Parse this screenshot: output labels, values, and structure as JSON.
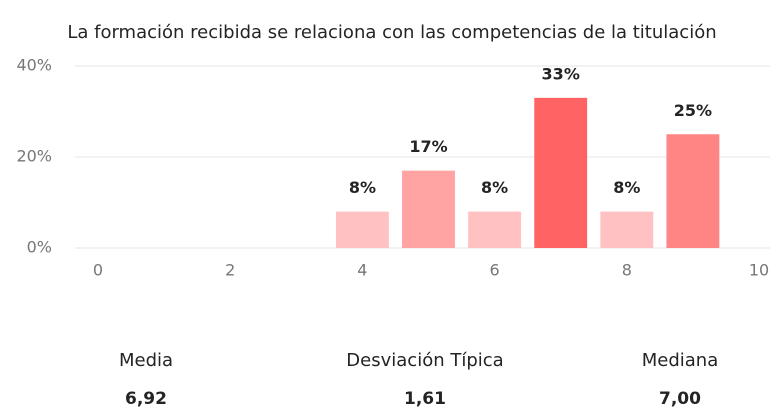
{
  "chart_data": {
    "type": "bar",
    "title": "La formación recibida se relaciona con las competencias de la titulación",
    "x": [
      4,
      5,
      6,
      7,
      8,
      9
    ],
    "values": [
      8,
      17,
      8,
      33,
      8,
      25
    ],
    "value_labels": [
      "8%",
      "17%",
      "8%",
      "33%",
      "8%",
      "25%"
    ],
    "colors": [
      "#ffc1c1",
      "#ffa3a3",
      "#ffc1c1",
      "#ff6363",
      "#ffc1c1",
      "#ff8585"
    ],
    "xlim": [
      0,
      10
    ],
    "xticks": [
      0,
      2,
      4,
      6,
      8,
      10
    ],
    "ylim": [
      0,
      40
    ],
    "yticks": [
      {
        "value": 0,
        "label": "0%"
      },
      {
        "value": 20,
        "label": "20%"
      },
      {
        "value": 40,
        "label": "40%"
      }
    ],
    "grid": true
  },
  "stats": [
    {
      "label": "Media",
      "value": "6,92"
    },
    {
      "label": "Desviación Típica",
      "value": "1,61"
    },
    {
      "label": "Mediana",
      "value": "7,00"
    }
  ]
}
